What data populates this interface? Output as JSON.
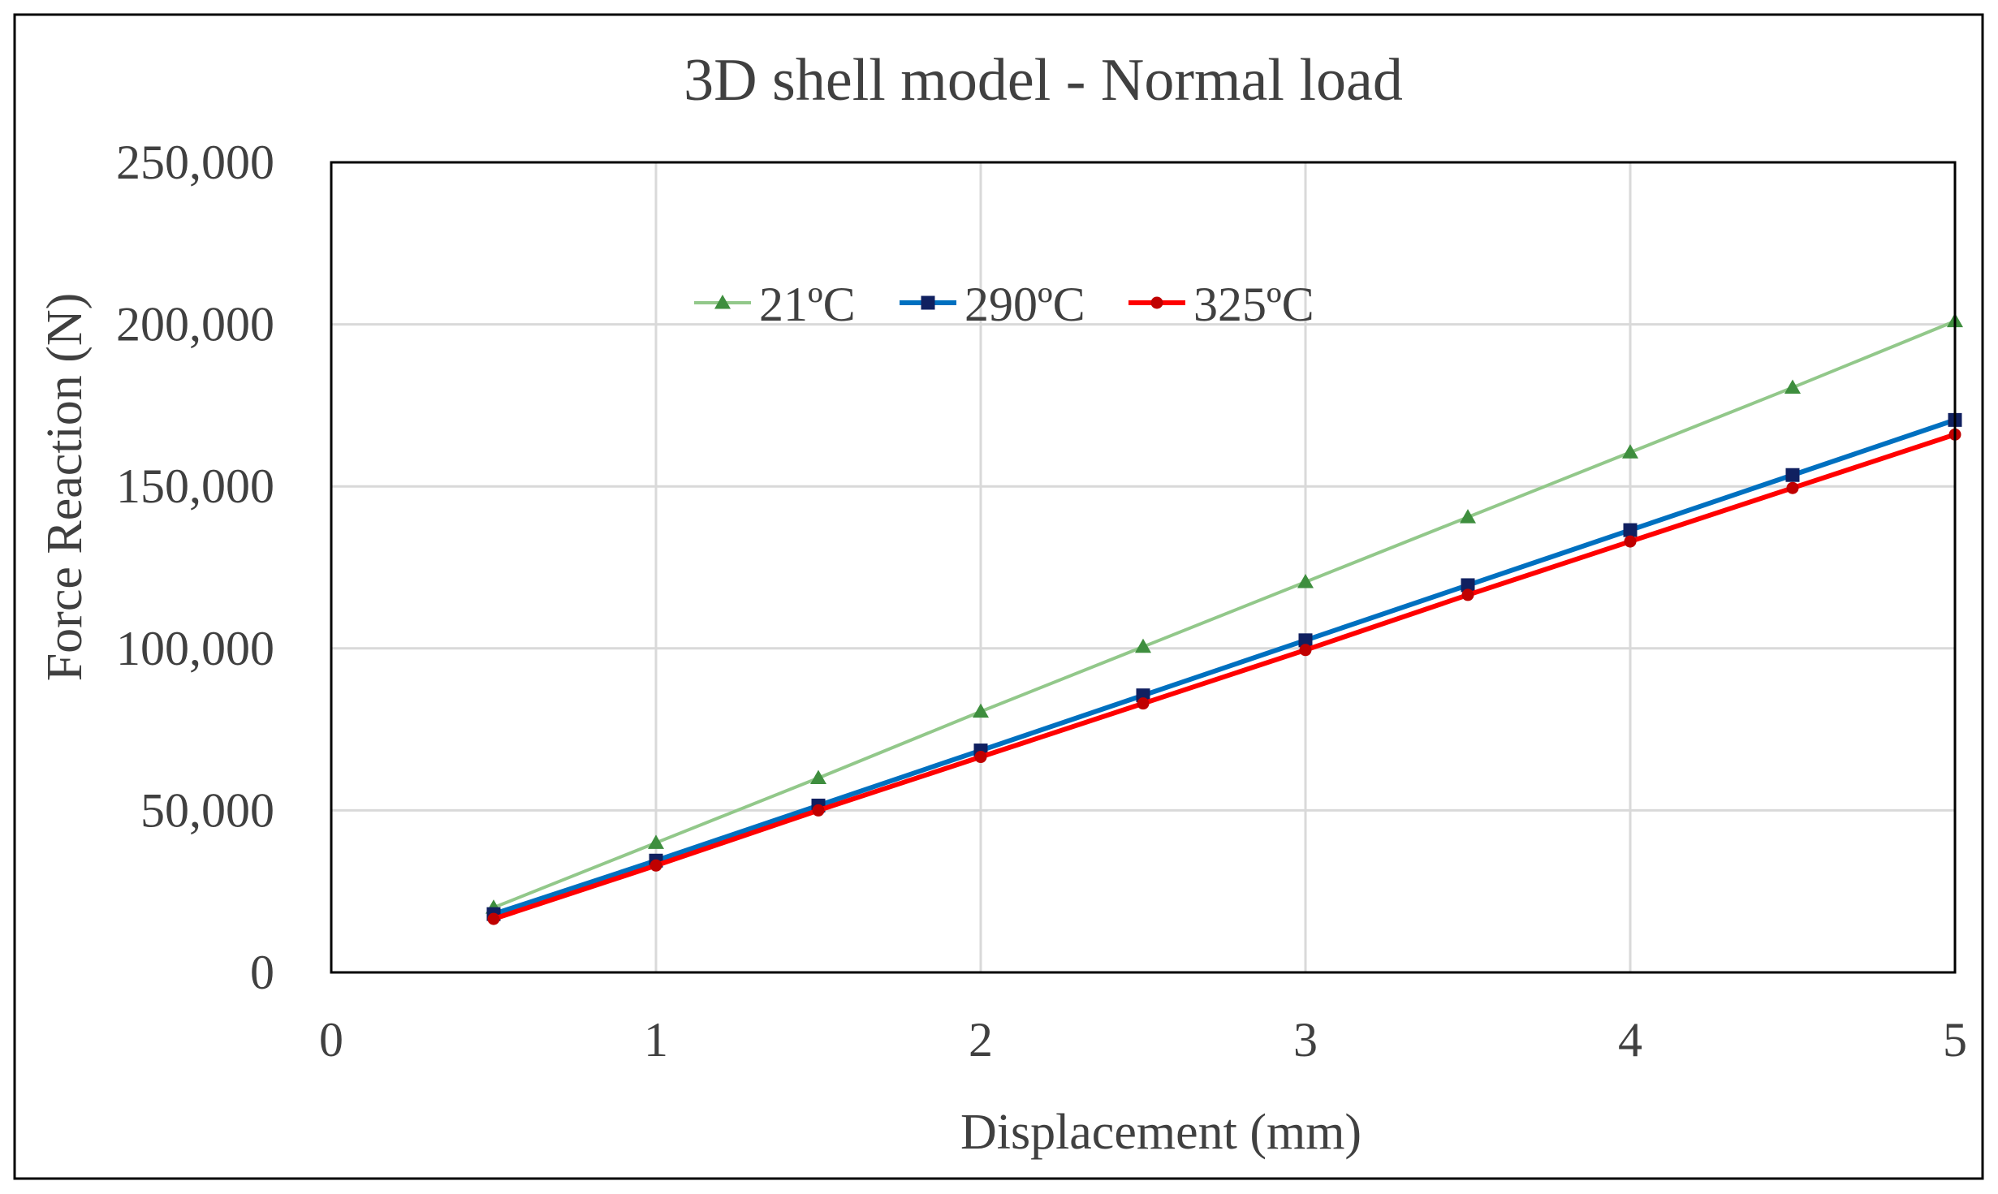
{
  "chart_data": {
    "type": "line",
    "title": "3D shell model - Normal load",
    "xlabel": "Displacement (mm)",
    "ylabel": "Force Reaction (N)",
    "xlim": [
      0,
      5
    ],
    "ylim": [
      0,
      250000
    ],
    "xticks": [
      0,
      1,
      2,
      3,
      4,
      5
    ],
    "xtick_labels": [
      "0",
      "1",
      "2",
      "3",
      "4",
      "5"
    ],
    "yticks": [
      0,
      50000,
      100000,
      150000,
      200000,
      250000
    ],
    "ytick_labels": [
      "0",
      "50,000",
      "100,000",
      "150,000",
      "200,000",
      "250,000"
    ],
    "grid": true,
    "legend_position": "top-left",
    "x": [
      0.5,
      1,
      1.5,
      2,
      2.5,
      3,
      3.5,
      4,
      4.5,
      5
    ],
    "series": [
      {
        "name": "21ºC",
        "color": "#92C88A",
        "marker_color": "#3E8E3E",
        "marker": "triangle",
        "values": [
          20000,
          40000,
          60000,
          80500,
          100500,
          120500,
          140500,
          160500,
          180500,
          201000
        ]
      },
      {
        "name": "290ºC",
        "color": "#0070C0",
        "marker_color": "#102060",
        "marker": "square",
        "values": [
          18000,
          34500,
          51500,
          68500,
          85500,
          102500,
          119500,
          136500,
          153500,
          170500
        ]
      },
      {
        "name": "325ºC",
        "color": "#FF0000",
        "marker_color": "#C00000",
        "marker": "circle",
        "values": [
          16500,
          33000,
          50000,
          66500,
          83000,
          99500,
          116500,
          133000,
          149500,
          166000
        ]
      }
    ]
  }
}
